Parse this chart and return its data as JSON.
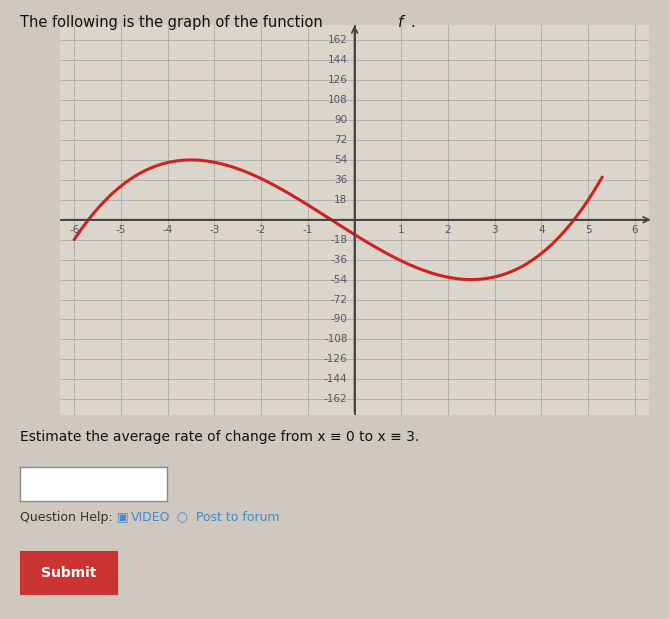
{
  "title_regular": "The following is the graph of the function ",
  "title_italic": "f",
  "title_dot": ".",
  "background_color": "#cec8bf",
  "graph_bg_color": "#dbd5cc",
  "grid_color": "#aaaaaa",
  "curve_color": "#cc2222",
  "xlim": [
    -6.3,
    6.3
  ],
  "ylim": [
    -176,
    176
  ],
  "x_ticks": [
    -6,
    -5,
    -4,
    -3,
    -2,
    -1,
    1,
    2,
    3,
    4,
    5,
    6
  ],
  "y_ticks": [
    -162,
    -144,
    -126,
    -108,
    -90,
    -72,
    -54,
    -36,
    -18,
    18,
    36,
    54,
    72,
    90,
    108,
    126,
    144,
    162
  ],
  "axis_color": "#444444",
  "text_color": "#111111",
  "tick_label_color": "#555566",
  "a_coef": 1.0,
  "b_coef": 1.5,
  "c_coef": -26.25,
  "d_coef": -13.375,
  "curve_xlim": [
    -6.0,
    5.3
  ],
  "question_text": "Estimate the average rate of change from x ≡ 0 to x ≡ 3.",
  "input_box_color": "#ffffff",
  "submit_bg": "#cc3333",
  "submit_text": "Submit",
  "help_text": "Question Help:",
  "video_text": "VIDEO",
  "forum_text": "Post to forum",
  "link_color": "#4488cc"
}
